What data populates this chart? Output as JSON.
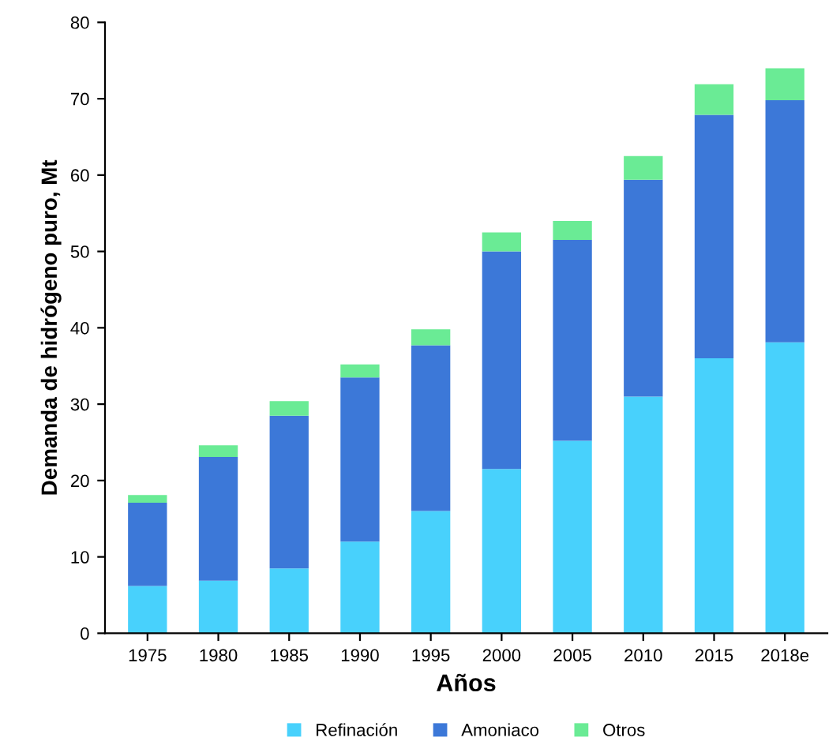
{
  "chart_data": {
    "type": "bar",
    "stacked": true,
    "xlabel": "Años",
    "ylabel": "Demanda de hidrógeno puro, Mt",
    "categories": [
      "1975",
      "1980",
      "1985",
      "1990",
      "1995",
      "2000",
      "2005",
      "2010",
      "2015",
      "2018e"
    ],
    "series": [
      {
        "name": "Refinación",
        "color": "#48d1fc",
        "values": [
          6.2,
          6.9,
          8.5,
          12.0,
          16.0,
          21.5,
          25.2,
          31.0,
          36.0,
          38.1
        ]
      },
      {
        "name": "Amoniaco",
        "color": "#3c78d8",
        "values": [
          10.9,
          16.2,
          20.0,
          21.5,
          21.7,
          28.5,
          26.3,
          28.4,
          31.9,
          31.7
        ]
      },
      {
        "name": "Otros",
        "color": "#6aeb95",
        "values": [
          1.0,
          1.5,
          1.9,
          1.7,
          2.1,
          2.5,
          2.5,
          3.1,
          4.0,
          4.2
        ]
      }
    ],
    "ylim": [
      0,
      80
    ],
    "yticks": [
      0,
      10,
      20,
      30,
      40,
      50,
      60,
      70,
      80
    ],
    "grid": false,
    "legend": "bottom"
  }
}
